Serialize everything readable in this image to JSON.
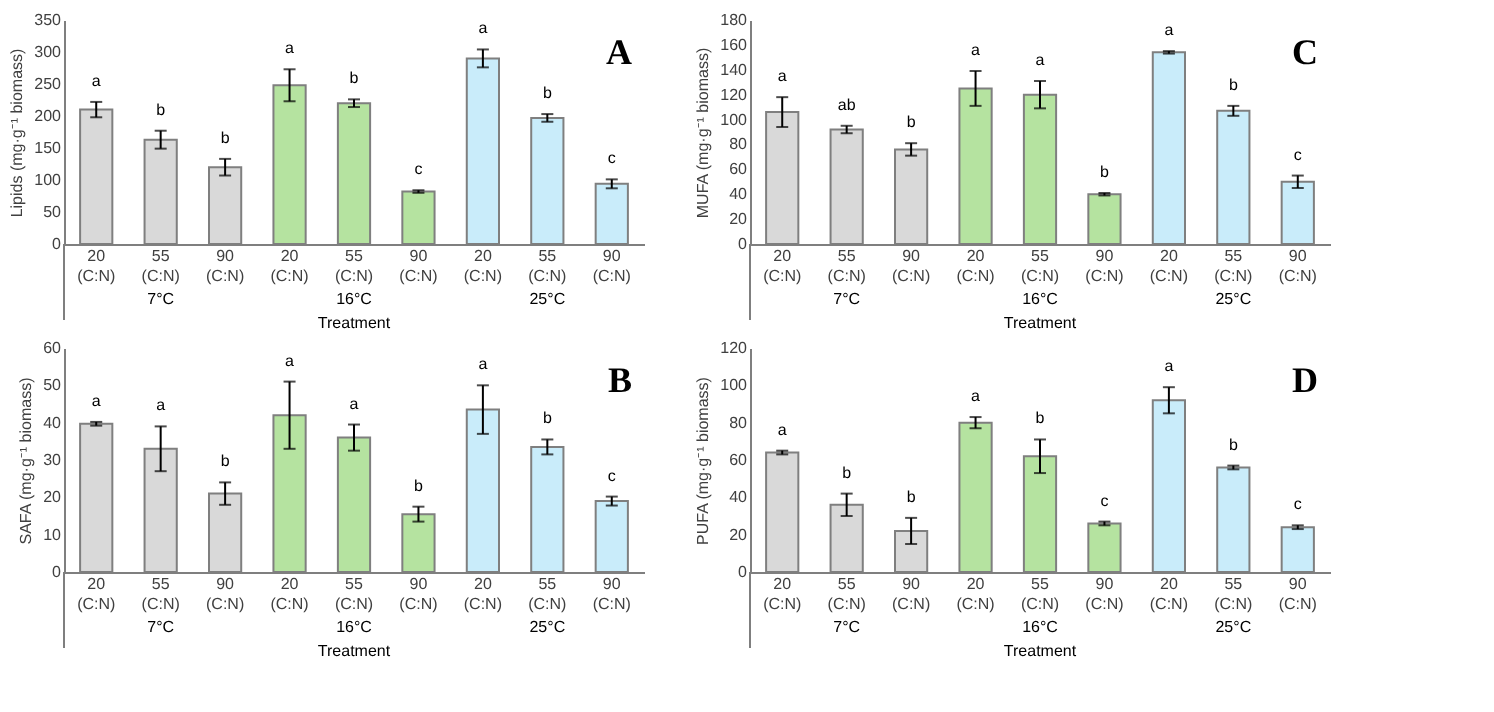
{
  "chart_data": [
    {
      "type": "bar",
      "title": "A",
      "xlabel": "Treatment",
      "ylabel": "Lipids (mg·g⁻¹ biomass)",
      "categories": [
        "20 (C:N)",
        "55 (C:N)",
        "90 (C:N)",
        "20 (C:N)",
        "55 (C:N)",
        "90 (C:N)",
        "20 (C:N)",
        "55 (C:N)",
        "90 (C:N)"
      ],
      "values": [
        210,
        163,
        120,
        248,
        220,
        82,
        290,
        197,
        94
      ],
      "errors": [
        12,
        14,
        13,
        25,
        6,
        2,
        14,
        6,
        7
      ],
      "colors": [
        "#d9d9d9",
        "#d9d9d9",
        "#d9d9d9",
        "#b5e3a0",
        "#b5e3a0",
        "#b5e3a0",
        "#c9ecfa",
        "#c9ecfa",
        "#c9ecfa"
      ],
      "value_labels": [
        "a",
        "b",
        "b",
        "a",
        "b",
        "c",
        "a",
        "b",
        "c"
      ],
      "annotations": [
        "7°C",
        "16°C",
        "25°C"
      ],
      "ylim": [
        0,
        350
      ],
      "yticks": [
        0,
        50,
        100,
        150,
        200,
        250,
        300,
        350
      ]
    },
    {
      "type": "bar",
      "title": "C",
      "xlabel": "Treatment",
      "ylabel": "MUFA (mg·g⁻¹ biomass)",
      "categories": [
        "20 (C:N)",
        "55 (C:N)",
        "90 (C:N)",
        "20 (C:N)",
        "55 (C:N)",
        "90 (C:N)",
        "20 (C:N)",
        "55 (C:N)",
        "90 (C:N)"
      ],
      "values": [
        106,
        92,
        76,
        125,
        120,
        40,
        154,
        107,
        50
      ],
      "errors": [
        12,
        3,
        5,
        14,
        11,
        1,
        1,
        4,
        5
      ],
      "colors": [
        "#d9d9d9",
        "#d9d9d9",
        "#d9d9d9",
        "#b5e3a0",
        "#b5e3a0",
        "#b5e3a0",
        "#c9ecfa",
        "#c9ecfa",
        "#c9ecfa"
      ],
      "value_labels": [
        "a",
        "ab",
        "b",
        "a",
        "a",
        "b",
        "a",
        "b",
        "c"
      ],
      "annotations": [
        "7°C",
        "16°C",
        "25°C"
      ],
      "ylim": [
        0,
        180
      ],
      "yticks": [
        0,
        20,
        40,
        60,
        80,
        100,
        120,
        140,
        160,
        180
      ]
    },
    {
      "type": "bar",
      "title": "B",
      "xlabel": "Treatment",
      "ylabel": "SAFA (mg·g⁻¹ biomass)",
      "categories": [
        "20 (C:N)",
        "55 (C:N)",
        "90 (C:N)",
        "20 (C:N)",
        "55 (C:N)",
        "90 (C:N)",
        "20 (C:N)",
        "55 (C:N)",
        "90 (C:N)"
      ],
      "values": [
        39.7,
        33,
        21,
        42,
        36,
        15.5,
        43.5,
        33.5,
        19
      ],
      "errors": [
        0.5,
        6,
        3,
        9,
        3.5,
        2,
        6.5,
        2,
        1.2
      ],
      "colors": [
        "#d9d9d9",
        "#d9d9d9",
        "#d9d9d9",
        "#b5e3a0",
        "#b5e3a0",
        "#b5e3a0",
        "#c9ecfa",
        "#c9ecfa",
        "#c9ecfa"
      ],
      "value_labels": [
        "a",
        "a",
        "b",
        "a",
        "a",
        "b",
        "a",
        "b",
        "c"
      ],
      "annotations": [
        "7°C",
        "16°C",
        "25°C"
      ],
      "ylim": [
        0,
        60
      ],
      "yticks": [
        0,
        10,
        20,
        30,
        40,
        50,
        60
      ]
    },
    {
      "type": "bar",
      "title": "D",
      "xlabel": "Treatment",
      "ylabel": "PUFA (mg·g⁻¹ biomass)",
      "categories": [
        "20 (C:N)",
        "55 (C:N)",
        "90 (C:N)",
        "20 (C:N)",
        "55 (C:N)",
        "90 (C:N)",
        "20 (C:N)",
        "55 (C:N)",
        "90 (C:N)"
      ],
      "values": [
        64,
        36,
        22,
        80,
        62,
        26,
        92,
        56,
        24
      ],
      "errors": [
        1,
        6,
        7,
        3,
        9,
        1,
        7,
        1,
        1
      ],
      "colors": [
        "#d9d9d9",
        "#d9d9d9",
        "#d9d9d9",
        "#b5e3a0",
        "#b5e3a0",
        "#b5e3a0",
        "#c9ecfa",
        "#c9ecfa",
        "#c9ecfa"
      ],
      "value_labels": [
        "a",
        "b",
        "b",
        "a",
        "b",
        "c",
        "a",
        "b",
        "c"
      ],
      "annotations": [
        "7°C",
        "16°C",
        "25°C"
      ],
      "ylim": [
        0,
        120
      ],
      "yticks": [
        0,
        20,
        40,
        60,
        80,
        100,
        120
      ]
    }
  ]
}
